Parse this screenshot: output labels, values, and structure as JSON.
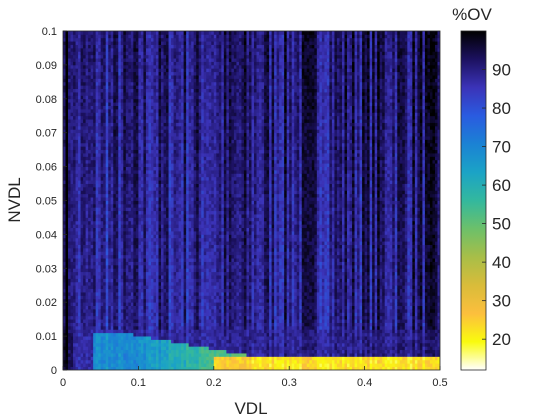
{
  "chart_data": {
    "type": "heatmap",
    "title": "",
    "xlabel": "VDL",
    "ylabel": "NVDL",
    "xlim": [
      0,
      0.5
    ],
    "ylim": [
      0,
      0.1
    ],
    "x_ticks": [
      "0",
      "0.1",
      "0.2",
      "0.3",
      "0.4",
      "0.5"
    ],
    "y_ticks": [
      "0",
      "0.01",
      "0.02",
      "0.03",
      "0.04",
      "0.05",
      "0.06",
      "0.07",
      "0.08",
      "0.09",
      "0.1"
    ],
    "colorbar": {
      "title": "%OV",
      "range": [
        12,
        100
      ],
      "ticks": [
        "20",
        "30",
        "40",
        "50",
        "60",
        "70",
        "80",
        "90"
      ],
      "colormap": [
        "#ffffff",
        "#f9fb0e",
        "#fcbf3d",
        "#d9bc3a",
        "#a8be48",
        "#6cc06a",
        "#33b89e",
        "#1ba3c6",
        "#1b82d4",
        "#2a5be0",
        "#3b33b8",
        "#1c1160",
        "#000000"
      ]
    },
    "cells_note_values": {
      "description_levels": [
        {
          "region": "x 0-0.005 (left edge)",
          "value": 98
        },
        {
          "region": "x 0.005-0.5, y 0.01-0.1 (upper field)",
          "value": 88
        },
        {
          "region": "x >0.3, y >0.05 (upper right)",
          "value": 93
        },
        {
          "region": "x 0.05-0.15, y 0-0.01",
          "value": 68
        },
        {
          "region": "x 0.15-0.25, y 0-0.005",
          "value": 40
        },
        {
          "region": "x 0.25-0.5, y 0-0.005",
          "value": 22
        }
      ]
    },
    "grid": false,
    "colorbar_placement": "right"
  }
}
